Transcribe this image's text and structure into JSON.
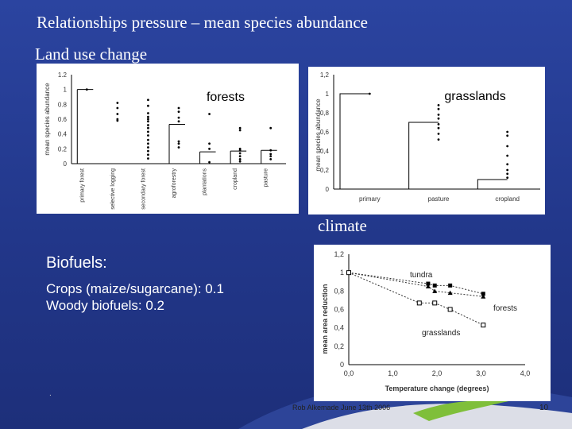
{
  "slide": {
    "title": "Relationships pressure – mean species abundance",
    "subtitle": "Land use change",
    "climate_label": "climate",
    "biofuels": {
      "heading": "Biofuels:",
      "lines": [
        "Crops (maize/sugarcane): 0.1",
        "Woody biofuels: 0.2"
      ]
    },
    "footer": "Rob Alkemade June 13th 2006",
    "page_number": "10",
    "corner_mark": "."
  },
  "chart_data": [
    {
      "type": "scatter",
      "title": "forests",
      "ylabel": "mean species abundance",
      "ylim": [
        0,
        1.2
      ],
      "yticks": [
        "0",
        "0.2",
        "0.4",
        "0.6",
        "0.8",
        "1",
        "1.2"
      ],
      "categories": [
        "primary forest",
        "selective logging",
        "secondary forest",
        "agroforestry",
        "plantations",
        "cropland",
        "pasture"
      ],
      "means": [
        1.0,
        null,
        null,
        0.53,
        0.16,
        0.17,
        0.18
      ],
      "points": [
        [
          1.0
        ],
        [
          0.82,
          0.75,
          0.67,
          0.6,
          0.58
        ],
        [
          0.86,
          0.78,
          0.68,
          0.63,
          0.6,
          0.57,
          0.52,
          0.48,
          0.43,
          0.38,
          0.32,
          0.27,
          0.22,
          0.17,
          0.12,
          0.07
        ],
        [
          0.75,
          0.7,
          0.62,
          0.57,
          0.3,
          0.27,
          0.22
        ],
        [
          0.67,
          0.27,
          0.2,
          0.02
        ],
        [
          0.48,
          0.45,
          0.2,
          0.18,
          0.14,
          0.1,
          0.06,
          0.03
        ],
        [
          0.48,
          0.18,
          0.13,
          0.1,
          0.06
        ]
      ]
    },
    {
      "type": "bar",
      "title": "grasslands",
      "ylabel": "mean species abundance",
      "ylim": [
        0,
        1.2
      ],
      "yticks": [
        "0",
        "0,2",
        "0,4",
        "0,6",
        "0,8",
        "1",
        "1,2"
      ],
      "categories": [
        "primary",
        "pasture",
        "cropland"
      ],
      "values": [
        1.0,
        0.7,
        0.1
      ],
      "points": [
        [
          1.0
        ],
        [
          0.88,
          0.84,
          0.78,
          0.74,
          0.68,
          0.64,
          0.58,
          0.52
        ],
        [
          0.6,
          0.56,
          0.45,
          0.35,
          0.26,
          0.2,
          0.16,
          0.12
        ]
      ]
    },
    {
      "type": "line",
      "xlabel": "Temperature change (degrees)",
      "ylabel": "mean area reduction",
      "xlim": [
        0,
        4
      ],
      "ylim": [
        0,
        1.2
      ],
      "xticks": [
        "0,0",
        "1,0",
        "2,0",
        "3,0",
        "4,0"
      ],
      "yticks": [
        "0",
        "0,2",
        "0,4",
        "0,6",
        "0,8",
        "1",
        "1,2"
      ],
      "series": [
        {
          "name": "tundra",
          "marker": "square-filled",
          "x": [
            0,
            1.8,
            1.95,
            2.3,
            3.05
          ],
          "y": [
            1.0,
            0.88,
            0.86,
            0.86,
            0.77
          ]
        },
        {
          "name": "forests",
          "marker": "triangle",
          "x": [
            0,
            1.8,
            1.95,
            2.3,
            3.05
          ],
          "y": [
            1.0,
            0.85,
            0.8,
            0.78,
            0.74
          ]
        },
        {
          "name": "grasslands",
          "marker": "square-open",
          "x": [
            0,
            1.6,
            1.95,
            2.3,
            3.05
          ],
          "y": [
            1.0,
            0.67,
            0.67,
            0.6,
            0.43
          ]
        }
      ]
    }
  ]
}
